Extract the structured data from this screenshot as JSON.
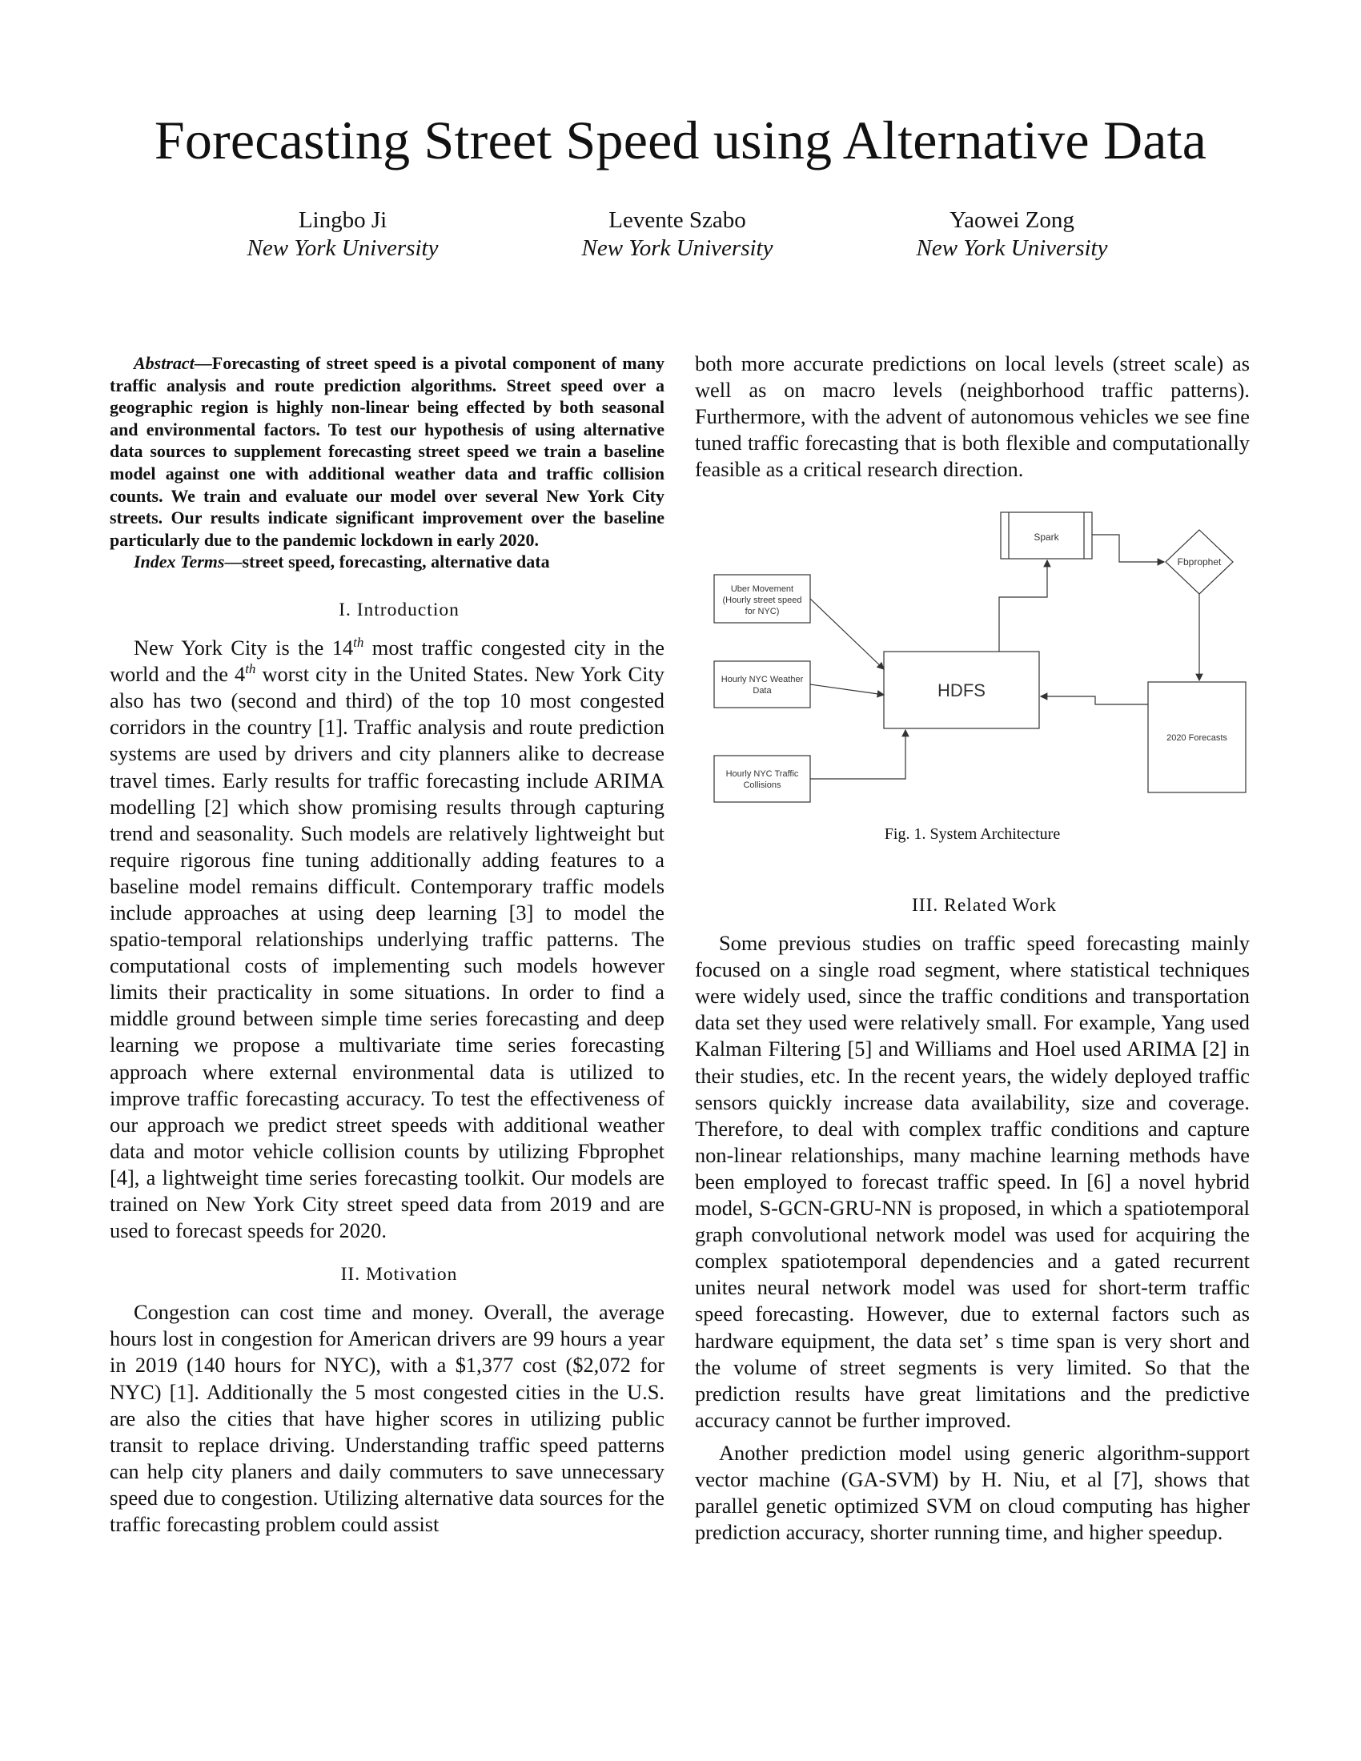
{
  "title": "Forecasting Street Speed using Alternative Data",
  "authors": [
    {
      "name": "Lingbo Ji",
      "affiliation": "New York University"
    },
    {
      "name": "Levente Szabo",
      "affiliation": "New York University"
    },
    {
      "name": "Yaowei Zong",
      "affiliation": "New York University"
    }
  ],
  "abstract": {
    "label": "Abstract",
    "text": "—Forecasting of street speed is a pivotal component of many traffic analysis and route prediction algorithms. Street speed over a geographic region is highly non-linear being effected by both seasonal and environmental factors. To test our hypothesis of using alternative data sources to supplement forecasting street speed we train a baseline model against one with additional weather data and traffic collision counts. We train and evaluate our model over several New York City streets. Our results indicate significant improvement over the baseline particularly due to the pandemic lockdown in early 2020."
  },
  "index_terms": {
    "label": "Index Terms",
    "text": "—street speed, forecasting, alternative data"
  },
  "sections": {
    "intro": {
      "heading": "I. Introduction",
      "p1_a": "New York City is the 14",
      "p1_sup1": "th",
      "p1_b": " most traffic congested city in the world and the 4",
      "p1_sup2": "th",
      "p1_c": " worst city in the United States. New York City also has two (second and third) of the top 10 most congested corridors in the country [1]. Traffic analysis and route prediction systems are used by drivers and city planners alike to decrease travel times. Early results for traffic forecasting include ARIMA modelling [2] which show promising results through capturing trend and seasonality. Such models are relatively lightweight but require rigorous fine tuning additionally adding features to a baseline model remains difficult. Contemporary traffic models include approaches at using deep learning [3] to model the spatio-temporal relationships underlying traffic patterns. The computational costs of implementing such models however limits their practicality in some situations. In order to find a middle ground between simple time series forecasting and deep learning we propose a multivariate time series forecasting approach where external environmental data is utilized to improve traffic forecasting accuracy. To test the effectiveness of our approach we predict street speeds with additional weather data and motor vehicle collision counts by utilizing Fbprophet [4], a lightweight time series forecasting toolkit. Our models are trained on New York City street speed data from 2019 and are used to forecast speeds for 2020."
    },
    "motivation": {
      "heading": "II. Motivation",
      "p1": "Congestion can cost time and money. Overall, the average hours lost in congestion for American drivers are 99 hours a year in 2019 (140 hours for NYC), with a $1,377 cost ($2,072 for NYC) [1]. Additionally the 5 most congested cities in the U.S. are also the cities that have higher scores in utilizing public transit to replace driving. Understanding traffic speed patterns can help city planers and daily commuters to save unnecessary speed due to congestion. Utilizing alternative data sources for the traffic forecasting problem could assist",
      "p1_cont": "both more accurate predictions on local levels (street scale) as well as on macro levels (neighborhood traffic patterns). Furthermore, with the advent of autonomous vehicles we see fine tuned traffic forecasting that is both flexible and computationally feasible as a critical research direction."
    },
    "related": {
      "heading": "III. Related Work",
      "p1": "Some previous studies on traffic speed forecasting mainly focused on a single road segment, where statistical techniques were widely used, since the traffic conditions and transportation data set they used were relatively small. For example, Yang used Kalman Filtering [5] and Williams and Hoel used ARIMA [2] in their studies, etc. In the recent years, the widely deployed traffic sensors quickly increase data availability, size and coverage. Therefore, to deal with complex traffic conditions and capture non-linear relationships, many machine learning methods have been employed to forecast traffic speed. In [6] a novel hybrid model, S-GCN-GRU-NN is proposed, in which a spatiotemporal graph convolutional network model was used for acquiring the complex spatiotemporal dependencies and a gated recurrent unites neural network model was used for short-term traffic speed forecasting. However, due to external factors such as hardware equipment, the data set’ s time span is very short and the volume of street segments is very limited. So that the prediction results have great limitations and the predictive accuracy cannot be further improved.",
      "p2": "Another prediction model using generic algorithm-support vector machine (GA-SVM) by H. Niu, et al [7], shows that parallel genetic optimized SVM on cloud computing has higher prediction accuracy, shorter running time, and higher speedup."
    }
  },
  "figure": {
    "caption": "Fig. 1.  System Architecture",
    "nodes": {
      "spark": "Spark",
      "fbprophet": "Fbprophet",
      "uber_l1": "Uber Movement",
      "uber_l2": "(Hourly street speed",
      "uber_l3": "for NYC)",
      "weather_l1": "Hourly NYC Weather",
      "weather_l2": "Data",
      "collisions_l1": "Hourly NYC Traffic",
      "collisions_l2": "Collisions",
      "hdfs": "HDFS",
      "forecasts": "2020 Forecasts"
    }
  }
}
